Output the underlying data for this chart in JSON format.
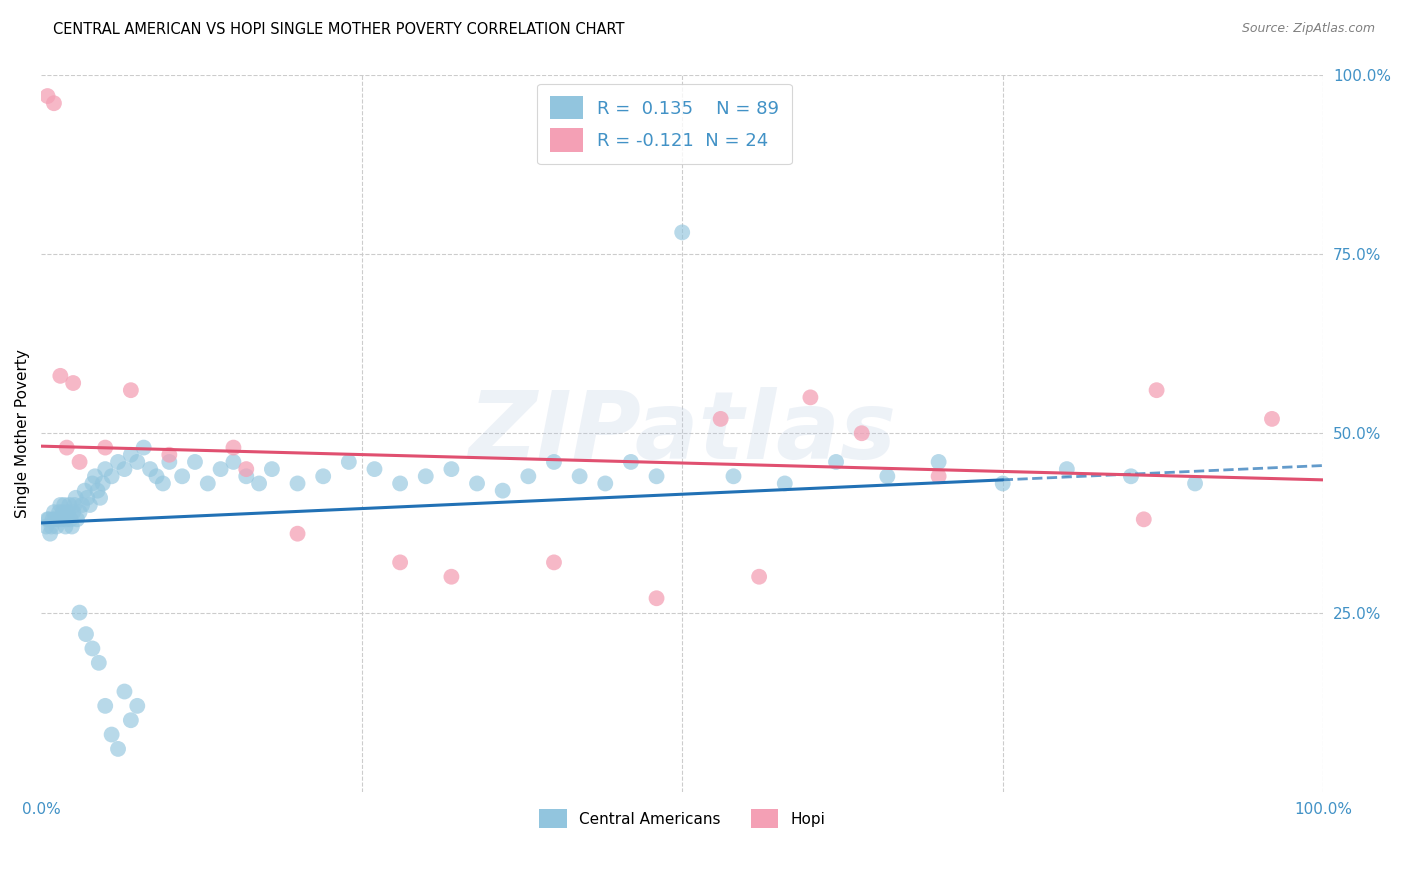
{
  "title": "CENTRAL AMERICAN VS HOPI SINGLE MOTHER POVERTY CORRELATION CHART",
  "source": "Source: ZipAtlas.com",
  "ylabel": "Single Mother Poverty",
  "R1": 0.135,
  "N1": 89,
  "R2": -0.121,
  "N2": 24,
  "color_blue": "#92c5de",
  "color_pink": "#f4a0b5",
  "color_blue_line": "#2171b5",
  "color_pink_line": "#e05070",
  "color_text_blue": "#4292c6",
  "background": "#ffffff",
  "grid_color": "#cccccc",
  "legend_label1": "Central Americans",
  "legend_label2": "Hopi",
  "watermark_text": "ZIPatlas",
  "xlim": [
    0.0,
    1.0
  ],
  "ylim": [
    0.0,
    1.0
  ],
  "ytick_positions": [
    0.25,
    0.5,
    0.75,
    1.0
  ],
  "ytick_labels": [
    "25.0%",
    "50.0%",
    "75.0%",
    "100.0%"
  ],
  "xtick_positions": [
    0.0,
    1.0
  ],
  "xtick_labels": [
    "0.0%",
    "100.0%"
  ],
  "blue_line_x0": 0.0,
  "blue_line_y0": 0.375,
  "blue_line_x1": 0.75,
  "blue_line_y1": 0.435,
  "blue_line_dash_x0": 0.75,
  "blue_line_dash_y0": 0.435,
  "blue_line_dash_x1": 1.0,
  "blue_line_dash_y1": 0.455,
  "pink_line_x0": 0.0,
  "pink_line_y0": 0.482,
  "pink_line_x1": 1.0,
  "pink_line_y1": 0.435,
  "blue_x": [
    0.004,
    0.005,
    0.006,
    0.007,
    0.008,
    0.009,
    0.01,
    0.011,
    0.012,
    0.013,
    0.014,
    0.015,
    0.016,
    0.017,
    0.018,
    0.019,
    0.02,
    0.021,
    0.022,
    0.023,
    0.024,
    0.025,
    0.026,
    0.027,
    0.028,
    0.03,
    0.032,
    0.034,
    0.036,
    0.038,
    0.04,
    0.042,
    0.044,
    0.046,
    0.048,
    0.05,
    0.055,
    0.06,
    0.065,
    0.07,
    0.075,
    0.08,
    0.085,
    0.09,
    0.095,
    0.1,
    0.11,
    0.12,
    0.13,
    0.14,
    0.15,
    0.16,
    0.17,
    0.18,
    0.2,
    0.22,
    0.24,
    0.26,
    0.28,
    0.3,
    0.32,
    0.34,
    0.36,
    0.38,
    0.4,
    0.42,
    0.44,
    0.46,
    0.48,
    0.5,
    0.54,
    0.58,
    0.62,
    0.66,
    0.7,
    0.75,
    0.8,
    0.85,
    0.9,
    0.03,
    0.035,
    0.04,
    0.045,
    0.05,
    0.055,
    0.06,
    0.065,
    0.07,
    0.075
  ],
  "blue_y": [
    0.37,
    0.38,
    0.38,
    0.36,
    0.37,
    0.38,
    0.39,
    0.38,
    0.37,
    0.38,
    0.39,
    0.4,
    0.38,
    0.39,
    0.4,
    0.37,
    0.38,
    0.39,
    0.4,
    0.38,
    0.37,
    0.39,
    0.4,
    0.41,
    0.38,
    0.39,
    0.4,
    0.42,
    0.41,
    0.4,
    0.43,
    0.44,
    0.42,
    0.41,
    0.43,
    0.45,
    0.44,
    0.46,
    0.45,
    0.47,
    0.46,
    0.48,
    0.45,
    0.44,
    0.43,
    0.46,
    0.44,
    0.46,
    0.43,
    0.45,
    0.46,
    0.44,
    0.43,
    0.45,
    0.43,
    0.44,
    0.46,
    0.45,
    0.43,
    0.44,
    0.45,
    0.43,
    0.42,
    0.44,
    0.46,
    0.44,
    0.43,
    0.46,
    0.44,
    0.78,
    0.44,
    0.43,
    0.46,
    0.44,
    0.46,
    0.43,
    0.45,
    0.44,
    0.43,
    0.25,
    0.22,
    0.2,
    0.18,
    0.12,
    0.08,
    0.06,
    0.14,
    0.1,
    0.12
  ],
  "pink_x": [
    0.005,
    0.01,
    0.015,
    0.02,
    0.025,
    0.03,
    0.05,
    0.07,
    0.1,
    0.15,
    0.16,
    0.2,
    0.28,
    0.32,
    0.4,
    0.48,
    0.53,
    0.56,
    0.6,
    0.64,
    0.7,
    0.86,
    0.87,
    0.96
  ],
  "pink_y": [
    0.97,
    0.96,
    0.58,
    0.48,
    0.57,
    0.46,
    0.48,
    0.56,
    0.47,
    0.48,
    0.45,
    0.36,
    0.32,
    0.3,
    0.32,
    0.27,
    0.52,
    0.3,
    0.55,
    0.5,
    0.44,
    0.38,
    0.56,
    0.52
  ]
}
